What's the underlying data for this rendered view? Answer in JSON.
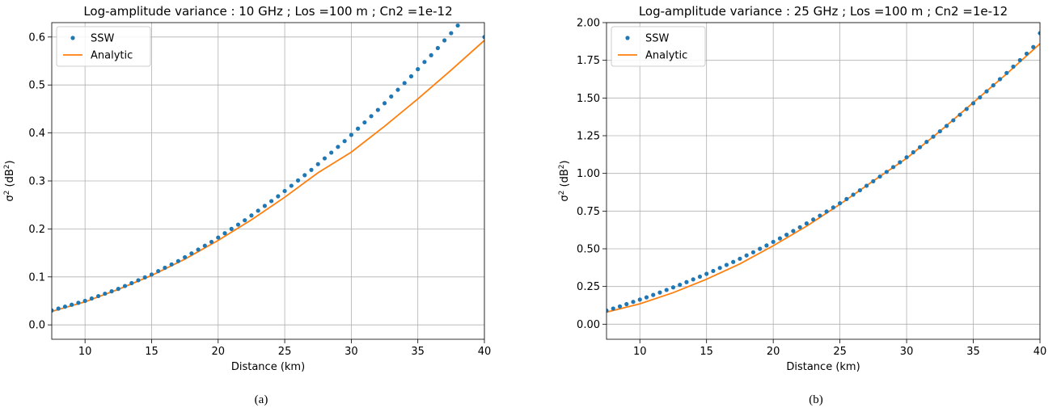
{
  "captions": [
    "(a)",
    "(b)"
  ],
  "chart_data": [
    {
      "type": "scatter",
      "title": "Log-amplitude variance : 10 GHz ; Los =100 m ; Cn2 =1e-12",
      "xlabel": "Distance (km)",
      "ylabel_base": "σ",
      "ylabel_sup1": "2",
      "ylabel_mid": " (dB",
      "ylabel_sup2": "2",
      "ylabel_end": ")",
      "xlim": [
        7.5,
        40
      ],
      "ylim": [
        -0.03,
        0.63
      ],
      "xticks": [
        10,
        15,
        20,
        25,
        30,
        35,
        40
      ],
      "xtick_labels": [
        "10",
        "15",
        "20",
        "25",
        "30",
        "35",
        "40"
      ],
      "yticks": [
        0.0,
        0.1,
        0.2,
        0.3,
        0.4,
        0.5,
        0.6
      ],
      "ytick_labels": [
        "0.0",
        "0.1",
        "0.2",
        "0.3",
        "0.4",
        "0.5",
        "0.6"
      ],
      "grid": true,
      "legend": "top-left",
      "series": [
        {
          "name": "SSW",
          "kind": "markers",
          "color": "#1f77b4",
          "x": [
            7.5,
            8,
            8.5,
            9,
            9.5,
            10,
            10.5,
            11,
            11.5,
            12,
            12.5,
            13,
            13.5,
            14,
            14.5,
            15,
            15.5,
            16,
            16.5,
            17,
            17.5,
            18,
            18.5,
            19,
            19.5,
            20,
            20.5,
            21,
            21.5,
            22,
            22.5,
            23,
            23.5,
            24,
            24.5,
            25,
            25.5,
            26,
            26.5,
            27,
            27.5,
            28,
            28.5,
            29,
            29.5,
            30,
            30.5,
            31,
            31.5,
            32,
            32.5,
            33,
            33.5,
            34,
            34.5,
            35,
            35.5,
            36,
            36.5,
            37,
            37.5,
            38,
            38.5,
            39,
            39.5,
            40
          ],
          "y": [
            0.03,
            0.034,
            0.038,
            0.042,
            0.046,
            0.05,
            0.055,
            0.06,
            0.065,
            0.07,
            0.075,
            0.081,
            0.087,
            0.093,
            0.099,
            0.105,
            0.112,
            0.119,
            0.126,
            0.133,
            0.141,
            0.149,
            0.157,
            0.165,
            0.173,
            0.182,
            0.191,
            0.2,
            0.209,
            0.218,
            0.228,
            0.238,
            0.248,
            0.258,
            0.268,
            0.279,
            0.29,
            0.301,
            0.312,
            0.323,
            0.335,
            0.347,
            0.359,
            0.371,
            0.383,
            0.396,
            0.409,
            0.422,
            0.435,
            0.448,
            0.462,
            0.476,
            0.49,
            0.504,
            0.518,
            0.533,
            0.548,
            0.562,
            0.577,
            0.593,
            0.608,
            0.624,
            0.639,
            0.655,
            0.671,
            0.6
          ]
        },
        {
          "name": "Analytic",
          "kind": "line",
          "color": "#ff7f0e",
          "x": [
            7.5,
            10,
            12.5,
            15,
            17.5,
            20,
            22.5,
            25,
            27.5,
            30,
            32.5,
            35,
            37.5,
            40
          ],
          "y": [
            0.028,
            0.048,
            0.074,
            0.103,
            0.137,
            0.176,
            0.219,
            0.266,
            0.317,
            0.36,
            0.414,
            0.471,
            0.531,
            0.593
          ]
        }
      ]
    },
    {
      "type": "scatter",
      "title": "Log-amplitude variance : 25 GHz ; Los =100 m ; Cn2 =1e-12",
      "xlabel": "Distance (km)",
      "ylabel_base": "σ",
      "ylabel_sup1": "2",
      "ylabel_mid": " (dB",
      "ylabel_sup2": "2",
      "ylabel_end": ")",
      "xlim": [
        7.5,
        40
      ],
      "ylim": [
        -0.1,
        2.0
      ],
      "xticks": [
        10,
        15,
        20,
        25,
        30,
        35,
        40
      ],
      "xtick_labels": [
        "10",
        "15",
        "20",
        "25",
        "30",
        "35",
        "40"
      ],
      "yticks": [
        0.0,
        0.25,
        0.5,
        0.75,
        1.0,
        1.25,
        1.5,
        1.75,
        2.0
      ],
      "ytick_labels": [
        "0.00",
        "0.25",
        "0.50",
        "0.75",
        "1.00",
        "1.25",
        "1.50",
        "1.75",
        "2.00"
      ],
      "grid": true,
      "legend": "top-left",
      "series": [
        {
          "name": "SSW",
          "kind": "markers",
          "color": "#1f77b4",
          "x": [
            7.5,
            8,
            8.5,
            9,
            9.5,
            10,
            10.5,
            11,
            11.5,
            12,
            12.5,
            13,
            13.5,
            14,
            14.5,
            15,
            15.5,
            16,
            16.5,
            17,
            17.5,
            18,
            18.5,
            19,
            19.5,
            20,
            20.5,
            21,
            21.5,
            22,
            22.5,
            23,
            23.5,
            24,
            24.5,
            25,
            25.5,
            26,
            26.5,
            27,
            27.5,
            28,
            28.5,
            29,
            29.5,
            30,
            30.5,
            31,
            31.5,
            32,
            32.5,
            33,
            33.5,
            34,
            34.5,
            35,
            35.5,
            36,
            36.5,
            37,
            37.5,
            38,
            38.5,
            39,
            39.5,
            40
          ],
          "y": [
            0.09,
            0.104,
            0.118,
            0.133,
            0.148,
            0.163,
            0.178,
            0.194,
            0.21,
            0.227,
            0.244,
            0.261,
            0.279,
            0.297,
            0.315,
            0.334,
            0.353,
            0.373,
            0.393,
            0.413,
            0.434,
            0.456,
            0.477,
            0.5,
            0.522,
            0.546,
            0.569,
            0.593,
            0.618,
            0.643,
            0.668,
            0.694,
            0.72,
            0.747,
            0.774,
            0.802,
            0.83,
            0.859,
            0.888,
            0.918,
            0.948,
            0.979,
            1.01,
            1.042,
            1.074,
            1.107,
            1.14,
            1.174,
            1.209,
            1.244,
            1.279,
            1.315,
            1.352,
            1.389,
            1.427,
            1.465,
            1.504,
            1.544,
            1.584,
            1.625,
            1.666,
            1.708,
            1.751,
            1.794,
            1.838,
            1.93
          ]
        },
        {
          "name": "Analytic",
          "kind": "line",
          "color": "#ff7f0e",
          "x": [
            7.5,
            10,
            12.5,
            15,
            17.5,
            20,
            22.5,
            25,
            27.5,
            30,
            32.5,
            35,
            37.5,
            40
          ],
          "y": [
            0.08,
            0.135,
            0.209,
            0.298,
            0.4,
            0.52,
            0.65,
            0.795,
            0.95,
            1.1,
            1.28,
            1.47,
            1.66,
            1.86
          ]
        }
      ]
    }
  ]
}
